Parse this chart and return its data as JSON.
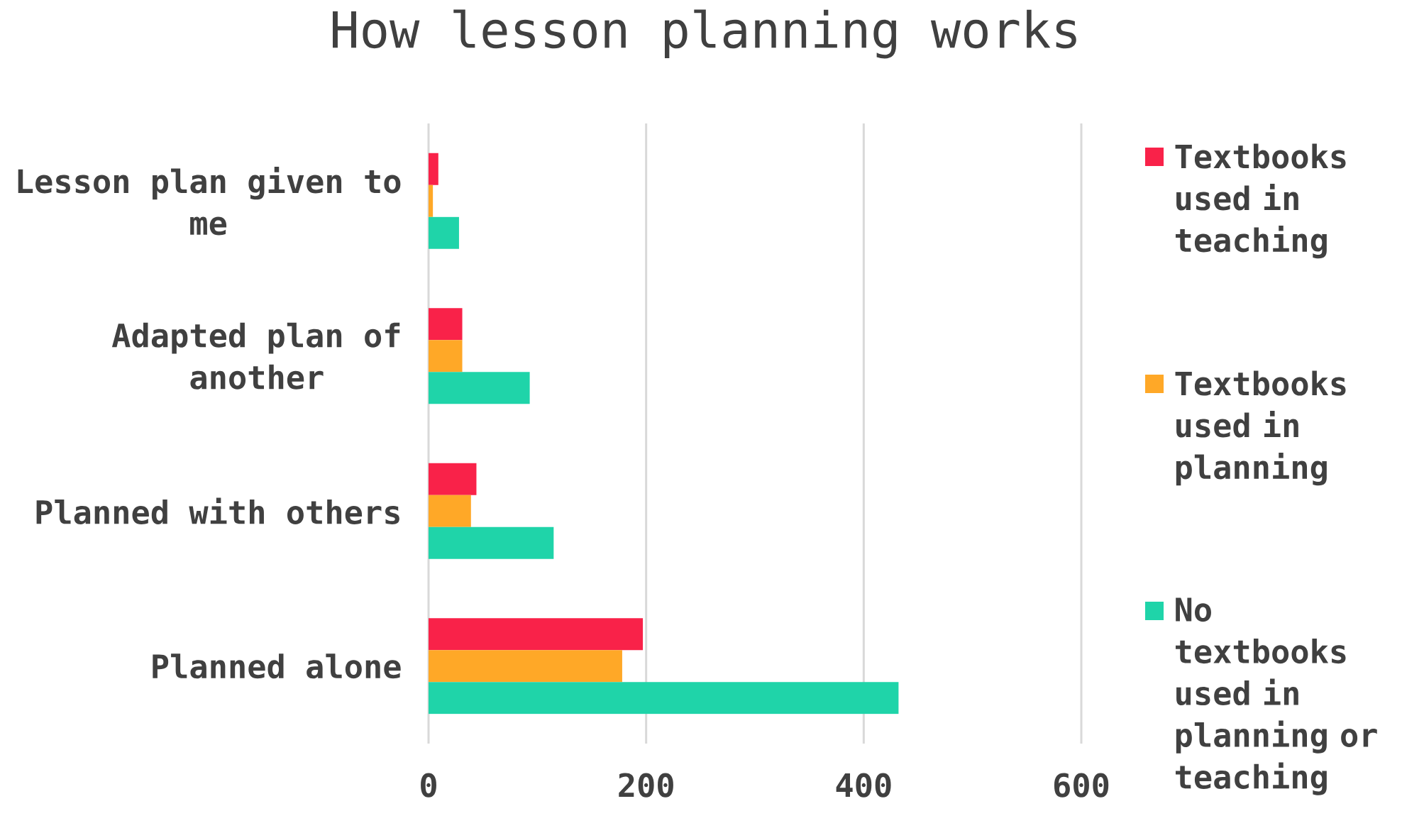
{
  "chart_data": {
    "type": "bar",
    "orientation": "horizontal",
    "title": "How lesson planning works",
    "categories": [
      "Lesson plan given to me",
      "Adapted plan of another",
      "Planned with others",
      "Planned alone"
    ],
    "series": [
      {
        "name": "Textbooks used in teaching",
        "color": "#f92249",
        "values": [
          9,
          31,
          44,
          197
        ]
      },
      {
        "name": "Textbooks used in planning",
        "color": "#ffa827",
        "values": [
          4,
          31,
          39,
          178
        ]
      },
      {
        "name": "No textbooks used in planning or teaching",
        "color": "#1fd4a9",
        "values": [
          28,
          93,
          115,
          432
        ]
      }
    ],
    "xlim": [
      0,
      600
    ],
    "xticks": [
      0,
      200,
      400,
      600
    ],
    "grid": "x",
    "legend": "right"
  }
}
